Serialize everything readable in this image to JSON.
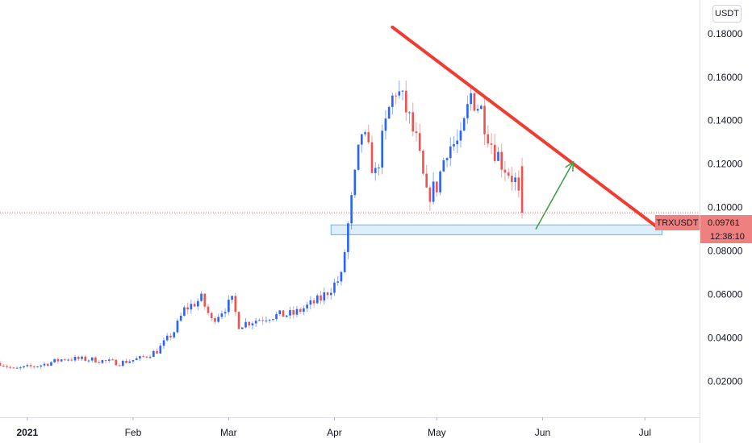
{
  "currency_button": "USDT",
  "colors": {
    "up": "#2962ff",
    "down": "#ef5350",
    "trendline": "#f23b30",
    "arrow": "#43a047",
    "support_fill": "#d6ecfa",
    "support_stroke": "#64b5f6",
    "price_tag_bg": "#ef8080",
    "price_line": "#ef5350"
  },
  "price_tag": {
    "symbol": "TRXUSDT",
    "price": "0.09761",
    "countdown": "12:38:10"
  },
  "chart_data": {
    "type": "candlestick",
    "symbol": "TRXUSDT",
    "interval": "1D",
    "y_ticks": [
      "0.18000",
      "0.16000",
      "0.14000",
      "0.12000",
      "0.10000",
      "0.08000",
      "0.06000",
      "0.04000",
      "0.02000"
    ],
    "x_ticks": [
      "2021",
      "Feb",
      "Mar",
      "Apr",
      "May",
      "Jun",
      "Jul"
    ],
    "ylim": [
      0.0035,
      0.1955
    ],
    "xlim": [
      "2020-12-24",
      "2021-07-17"
    ],
    "grid": false,
    "last_price": 0.09761,
    "anchors": [
      [
        "2020-12-24",
        0.0285
      ],
      [
        "2020-12-28",
        0.0255
      ],
      [
        "2021-01-05",
        0.0275
      ],
      [
        "2021-01-12",
        0.0305
      ],
      [
        "2021-01-20",
        0.03
      ],
      [
        "2021-01-28",
        0.0285
      ],
      [
        "2021-02-03",
        0.0305
      ],
      [
        "2021-02-08",
        0.034
      ],
      [
        "2021-02-13",
        0.043
      ],
      [
        "2021-02-16",
        0.053
      ],
      [
        "2021-02-21",
        0.058
      ],
      [
        "2021-02-24",
        0.048
      ],
      [
        "2021-03-02",
        0.057
      ],
      [
        "2021-03-04",
        0.046
      ],
      [
        "2021-03-13",
        0.05
      ],
      [
        "2021-03-20",
        0.051
      ],
      [
        "2021-03-28",
        0.058
      ],
      [
        "2021-04-03",
        0.068
      ],
      [
        "2021-04-05",
        0.092
      ],
      [
        "2021-04-09",
        0.135
      ],
      [
        "2021-04-13",
        0.115
      ],
      [
        "2021-04-17",
        0.145
      ],
      [
        "2021-04-19",
        0.155
      ],
      [
        "2021-04-22",
        0.145
      ],
      [
        "2021-04-25",
        0.13
      ],
      [
        "2021-04-28",
        0.105
      ],
      [
        "2021-05-01",
        0.11
      ],
      [
        "2021-05-04",
        0.128
      ],
      [
        "2021-05-08",
        0.13
      ],
      [
        "2021-05-11",
        0.152
      ],
      [
        "2021-05-14",
        0.145
      ],
      [
        "2021-05-17",
        0.13
      ],
      [
        "2021-05-20",
        0.121
      ],
      [
        "2021-05-24",
        0.112
      ],
      [
        "2021-05-26",
        0.0976
      ]
    ],
    "annotations": {
      "trendline": {
        "from": [
          "2021-04-18",
          0.183
        ],
        "to": [
          "2021-07-05",
          0.0905
        ]
      },
      "support_zone": {
        "from": "2021-03-31",
        "to": "2021-07-06",
        "low": 0.0875,
        "high": 0.092
      },
      "arrow": {
        "from": [
          "2021-05-30",
          0.09
        ],
        "to": [
          "2021-06-10",
          0.121
        ]
      }
    }
  }
}
